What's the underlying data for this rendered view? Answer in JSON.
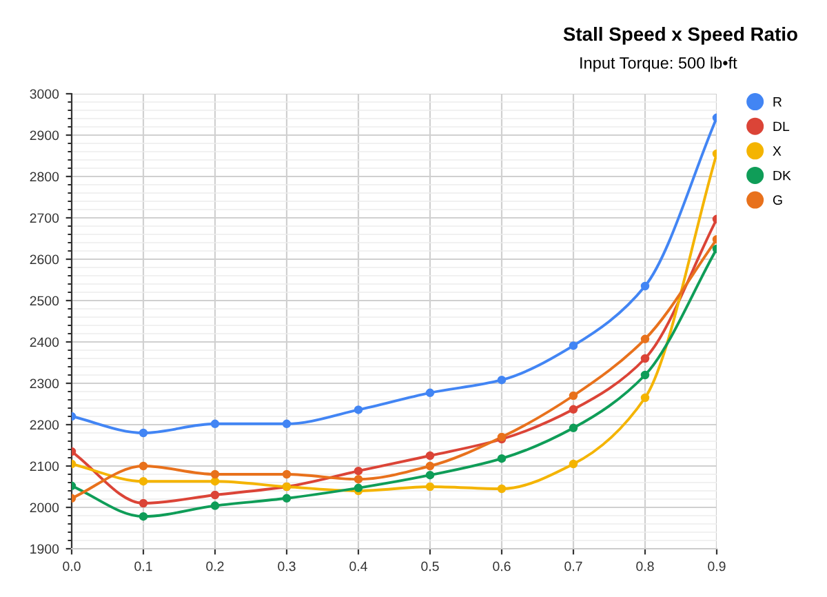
{
  "chart_data": {
    "type": "line",
    "title": "Stall Speed x Speed Ratio",
    "subtitle": "Input Torque: 500 lb•ft",
    "x": [
      0.0,
      0.1,
      0.2,
      0.3,
      0.4,
      0.5,
      0.6,
      0.7,
      0.8,
      0.9
    ],
    "series": [
      {
        "name": "R",
        "color": "#4285f4",
        "values": [
          2220,
          2180,
          2202,
          2202,
          2236,
          2277,
          2308,
          2391,
          2535,
          2942
        ]
      },
      {
        "name": "DL",
        "color": "#db4437",
        "values": [
          2135,
          2010,
          2030,
          2050,
          2088,
          2125,
          2165,
          2237,
          2360,
          2697
        ]
      },
      {
        "name": "X",
        "color": "#f4b400",
        "values": [
          2105,
          2063,
          2063,
          2050,
          2040,
          2050,
          2045,
          2105,
          2265,
          2855
        ]
      },
      {
        "name": "DK",
        "color": "#0f9d58",
        "values": [
          2052,
          1978,
          2004,
          2022,
          2047,
          2078,
          2118,
          2192,
          2320,
          2625
        ]
      },
      {
        "name": "G",
        "color": "#e8711c",
        "values": [
          2022,
          2100,
          2080,
          2080,
          2068,
          2100,
          2170,
          2270,
          2407,
          2648
        ]
      }
    ],
    "xlim": [
      0.0,
      0.9
    ],
    "xticks": [
      {
        "value": 0.0,
        "label": "0.0"
      },
      {
        "value": 0.1,
        "label": "0.1"
      },
      {
        "value": 0.2,
        "label": "0.2"
      },
      {
        "value": 0.3,
        "label": "0.3"
      },
      {
        "value": 0.4,
        "label": "0.4"
      },
      {
        "value": 0.5,
        "label": "0.5"
      },
      {
        "value": 0.6,
        "label": "0.6"
      },
      {
        "value": 0.7,
        "label": "0.7"
      },
      {
        "value": 0.8,
        "label": "0.8"
      },
      {
        "value": 0.9,
        "label": "0.9"
      }
    ],
    "ylim": [
      1900,
      3000
    ],
    "yticks": [
      1900,
      2000,
      2100,
      2200,
      2300,
      2400,
      2500,
      2600,
      2700,
      2800,
      2900,
      3000
    ],
    "grid": true,
    "legend": "top right",
    "marker": "circle",
    "line_style": "solid"
  }
}
